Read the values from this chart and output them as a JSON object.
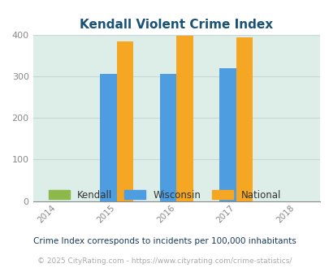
{
  "title": "Kendall Violent Crime Index",
  "title_color": "#1a5276",
  "years": [
    2014,
    2015,
    2016,
    2017,
    2018
  ],
  "bar_years": [
    2015,
    2016,
    2017
  ],
  "kendall": [
    0,
    0,
    0
  ],
  "wisconsin": [
    306,
    306,
    320
  ],
  "national": [
    385,
    398,
    393
  ],
  "kendall_color": "#8db84a",
  "wisconsin_color": "#4d9de0",
  "national_color": "#f5a623",
  "plot_bg_color": "#ddeee8",
  "ylim": [
    0,
    400
  ],
  "yticks": [
    0,
    100,
    200,
    300,
    400
  ],
  "bar_width": 0.28,
  "legend_labels": [
    "Kendall",
    "Wisconsin",
    "National"
  ],
  "legend_text_color": "#333333",
  "footnote1": "Crime Index corresponds to incidents per 100,000 inhabitants",
  "footnote2": "© 2025 CityRating.com - https://www.cityrating.com/crime-statistics/",
  "footnote1_color": "#1a3a5c",
  "footnote2_color": "#aaaaaa",
  "grid_color": "#c5d8d5",
  "tick_color": "#888888",
  "xlim": [
    2013.6,
    2018.4
  ]
}
